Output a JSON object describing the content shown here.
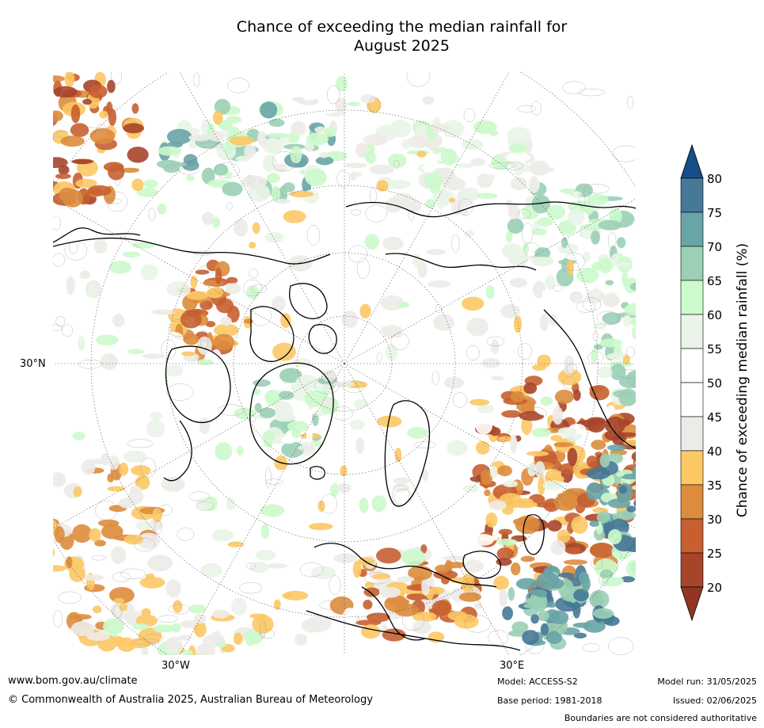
{
  "title": {
    "line1": "Chance of exceeding the median rainfall for",
    "line2": "August 2025"
  },
  "map": {
    "lat_label": "30°N",
    "lon_labels": [
      "30°W",
      "30°E"
    ]
  },
  "colorbar": {
    "label": "Chance of exceeding median rainfall (%)",
    "levels": [
      20,
      25,
      30,
      35,
      40,
      45,
      50,
      55,
      60,
      65,
      70,
      75,
      80
    ],
    "colors": [
      "#a7452a",
      "#c75f30",
      "#dd8c3d",
      "#fcc865",
      "#edebe8",
      "#ffffff",
      "#ffffff",
      "#eaf4e8",
      "#ccfacc",
      "#9bcfb6",
      "#69a4a7",
      "#467897"
    ],
    "under_color": "#923621",
    "over_color": "#174d88"
  },
  "footer": {
    "website": "www.bom.gov.au/climate",
    "copyright": "© Commonwealth of Australia 2025, Australian Bureau of Meteorology",
    "model": "Model: ACCESS-S2",
    "base_period": "Base period: 1981-2018",
    "model_run": "Model run: 31/05/2025",
    "issued": "Issued: 02/06/2025",
    "disclaimer": "Boundaries are not considered authoritative"
  }
}
